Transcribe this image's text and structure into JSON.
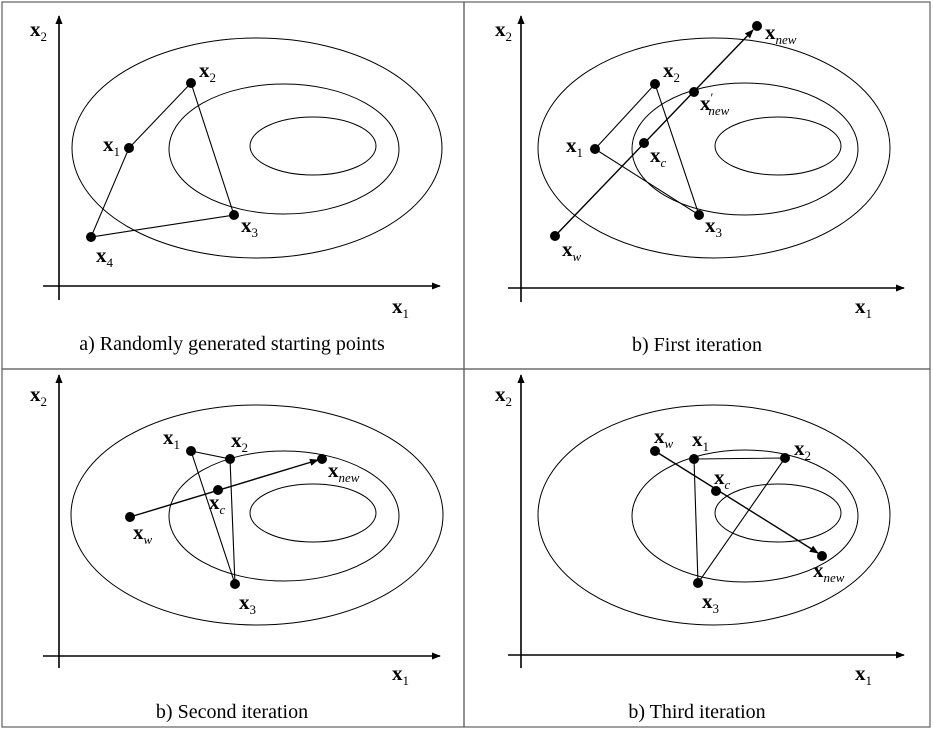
{
  "panels": [
    {
      "caption": "a) Randomly generated starting points",
      "points": [
        {
          "id": "x1",
          "base": "x",
          "sub": "1"
        },
        {
          "id": "x2",
          "base": "x",
          "sub": "2"
        },
        {
          "id": "x3",
          "base": "x",
          "sub": "3"
        },
        {
          "id": "x4",
          "base": "x",
          "sub": "4"
        }
      ]
    },
    {
      "caption": "b) First iteration",
      "points": [
        {
          "id": "x1",
          "base": "x",
          "sub": "1"
        },
        {
          "id": "x2",
          "base": "x",
          "sub": "2"
        },
        {
          "id": "x3",
          "base": "x",
          "sub": "3"
        },
        {
          "id": "xw",
          "base": "x",
          "sub": "w"
        },
        {
          "id": "xc",
          "base": "x",
          "sub": "c"
        },
        {
          "id": "xnewp",
          "base": "x",
          "sub": "new",
          "prime": "′"
        },
        {
          "id": "xnew",
          "base": "x",
          "sub": "new"
        }
      ]
    },
    {
      "caption": "b) Second iteration",
      "points": [
        {
          "id": "x1",
          "base": "x",
          "sub": "1"
        },
        {
          "id": "x2",
          "base": "x",
          "sub": "2"
        },
        {
          "id": "x3",
          "base": "x",
          "sub": "3"
        },
        {
          "id": "xw",
          "base": "x",
          "sub": "w"
        },
        {
          "id": "xc",
          "base": "x",
          "sub": "c"
        },
        {
          "id": "xnew",
          "base": "x",
          "sub": "new"
        }
      ]
    },
    {
      "caption": "b) Third iteration",
      "points": [
        {
          "id": "xw",
          "base": "x",
          "sub": "w"
        },
        {
          "id": "x1",
          "base": "x",
          "sub": "1"
        },
        {
          "id": "x2",
          "base": "x",
          "sub": "2"
        },
        {
          "id": "xc",
          "base": "x",
          "sub": "c"
        },
        {
          "id": "x3",
          "base": "x",
          "sub": "3"
        },
        {
          "id": "xnew",
          "base": "x",
          "sub": "new"
        }
      ]
    }
  ],
  "axes": {
    "x_base": "x",
    "x_sub": "1",
    "y_base": "x",
    "y_sub": "2"
  }
}
